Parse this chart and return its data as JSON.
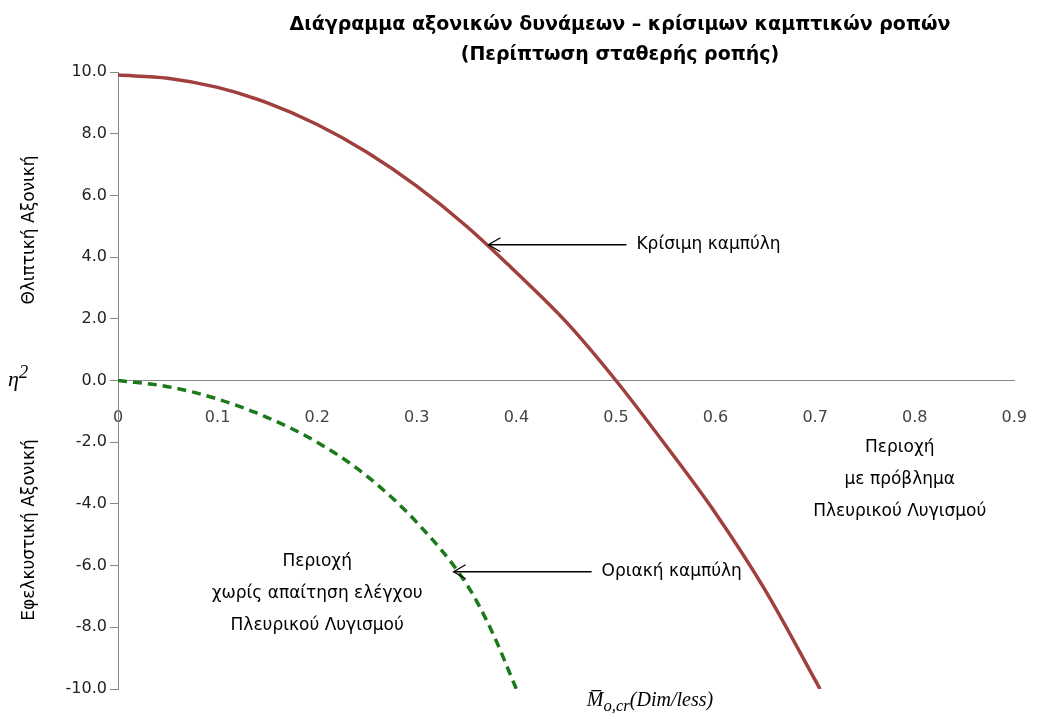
{
  "chart_data": {
    "type": "line",
    "title": "Διάγραμμα  αξονικών δυνάμεων – κρίσιμων καμπτικών ροπών",
    "subtitle": "(Περίπτωση σταθερής ροπής)",
    "xlabel": "M̅$_{o,cr}$(Dim/less)",
    "ylabel": "η$^{2}$",
    "xlim": [
      0,
      0.9
    ],
    "xticks": [
      0,
      0.1,
      0.2,
      0.3,
      0.4,
      0.5,
      0.6,
      0.7,
      0.8,
      0.9
    ],
    "ylim": [
      -10,
      10
    ],
    "yticks": [
      {
        "value": -10,
        "label": "-10.0"
      },
      {
        "value": -8,
        "label": "-8.0"
      },
      {
        "value": -6,
        "label": "-6.0"
      },
      {
        "value": -4,
        "label": "-4.0"
      },
      {
        "value": -2,
        "label": "-2.0"
      },
      {
        "value": 0,
        "label": "0.0"
      },
      {
        "value": 2,
        "label": "2.0"
      },
      {
        "value": 4,
        "label": "4.0"
      },
      {
        "value": 6,
        "label": "6.0"
      },
      {
        "value": 8,
        "label": "8.0"
      },
      {
        "value": 10,
        "label": "10.0"
      }
    ],
    "grid": false,
    "legend": false,
    "marker": "none",
    "series": [
      {
        "color": "#a0403e",
        "line_style": "solid",
        "x": [
          0,
          0.05,
          0.1,
          0.15,
          0.2,
          0.25,
          0.3,
          0.35,
          0.4,
          0.45,
          0.5,
          0.55,
          0.6,
          0.65,
          0.705
        ],
        "values": [
          9.9,
          9.8,
          9.5,
          9.0,
          8.3,
          7.4,
          6.3,
          5.0,
          3.5,
          1.9,
          0,
          -2.1,
          -4.3,
          -6.8,
          -10
        ]
      },
      {
        "color": "#1a7a1a",
        "line_style": "dashed",
        "x": [
          0,
          0.05,
          0.1,
          0.15,
          0.2,
          0.25,
          0.3,
          0.35,
          0.375,
          0.4
        ],
        "values": [
          0,
          -0.2,
          -0.6,
          -1.2,
          -2.0,
          -3.1,
          -4.6,
          -6.6,
          -8.1,
          -10
        ]
      }
    ],
    "annotations": [
      {
        "text": "Κρίσιμη καμπύλη",
        "x": 0.37,
        "y": 4.4
      },
      {
        "text": "Οριακή καμπύλη",
        "x": 0.335,
        "y": -6.2
      },
      "Θλιπτική Αξονική",
      "Εφελκυστική Αξονική",
      "Περιοχή\nμε πρόβλημα\nΠλευρικού Λυγισμού",
      "Περιοχή\nχωρίς απαίτηση ελέγχου\nΠλευρικού Λυγισμού"
    ]
  }
}
